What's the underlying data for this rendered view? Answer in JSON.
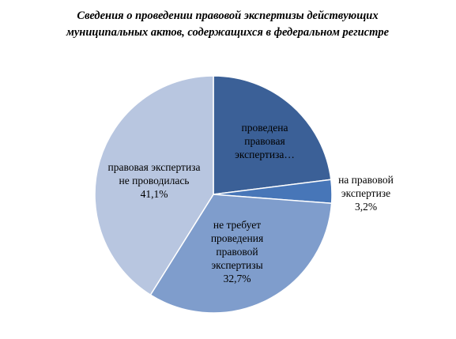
{
  "chart_data": {
    "type": "pie",
    "title": "Сведения о проведении правовой экспертизы действующих муниципальных актов, содержащихся в федеральном регистре",
    "categories": [
      "проведена правовая экспертиза…",
      "на правовой экспертизе",
      "не требует проведения правовой экспертизы",
      "правовая экспертиза не проводилась"
    ],
    "values": [
      23.0,
      3.2,
      32.7,
      41.1
    ],
    "value_labels": [
      null,
      "3,2%",
      "32,7%",
      "41,1%"
    ],
    "colors": [
      "#3b6097",
      "#4776b8",
      "#7f9dcc",
      "#b8c6e0"
    ]
  }
}
